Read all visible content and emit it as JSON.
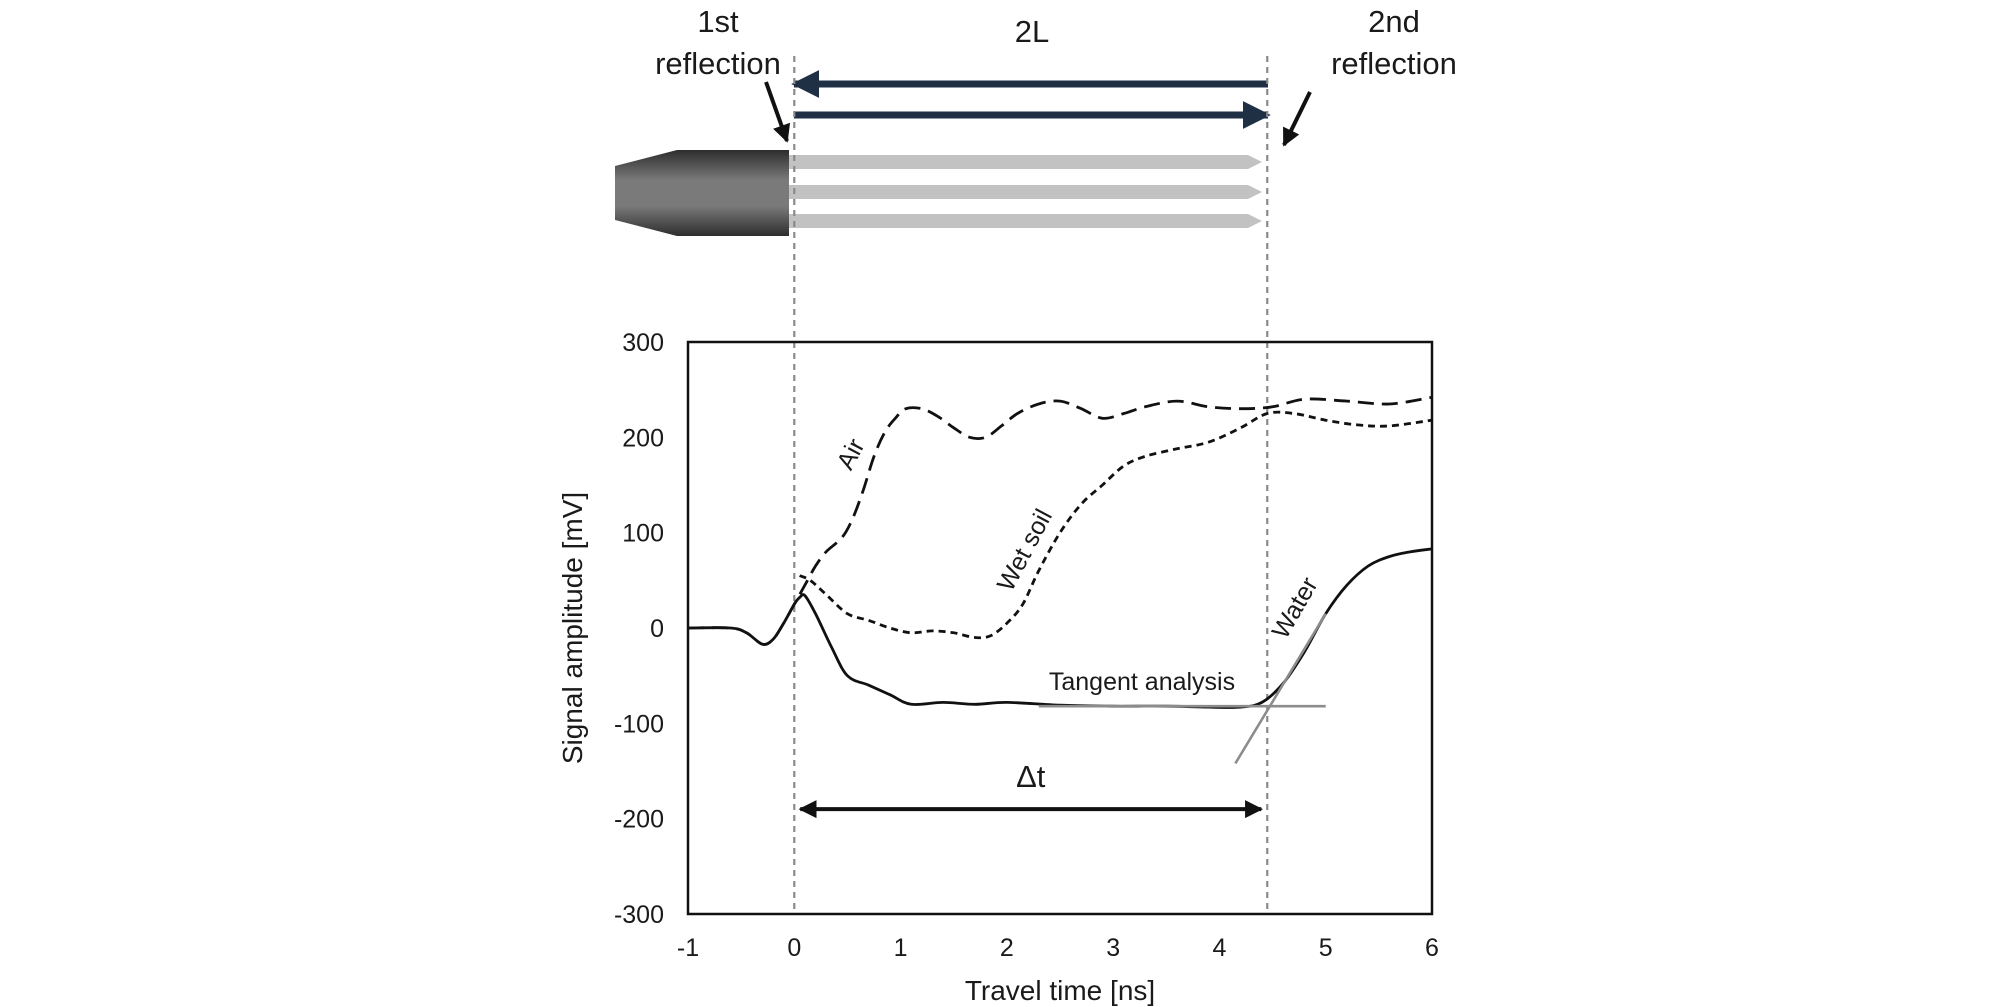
{
  "chart_data": {
    "type": "line",
    "title": "",
    "xlabel": "Travel time [ns]",
    "ylabel": "Signal amplitude [mV]",
    "xlim": [
      -1,
      6
    ],
    "ylim": [
      -300,
      300
    ],
    "x_ticks": [
      -1,
      0,
      1,
      2,
      3,
      4,
      5,
      6
    ],
    "y_ticks": [
      300,
      200,
      100,
      0,
      -100,
      -200,
      -300
    ],
    "grid": false,
    "legend": "none",
    "series": [
      {
        "name": "Air",
        "dash": "long",
        "x": [
          -1.0,
          -0.6,
          -0.45,
          -0.3,
          -0.2,
          -0.1,
          0.0,
          0.1,
          0.2,
          0.3,
          0.45,
          0.55,
          0.65,
          0.75,
          0.85,
          0.95,
          1.05,
          1.2,
          1.35,
          1.5,
          1.65,
          1.8,
          1.95,
          2.1,
          2.3,
          2.5,
          2.7,
          2.9,
          3.1,
          3.3,
          3.6,
          3.9,
          4.2,
          4.5,
          4.8,
          5.2,
          5.6,
          6.0
        ],
        "y": [
          0,
          0,
          -5,
          -17,
          -12,
          5,
          25,
          45,
          65,
          80,
          95,
          115,
          145,
          180,
          205,
          220,
          230,
          230,
          222,
          210,
          200,
          200,
          212,
          225,
          235,
          238,
          230,
          220,
          225,
          232,
          238,
          232,
          230,
          232,
          240,
          238,
          235,
          242
        ]
      },
      {
        "name": "Wet soil",
        "dash": "short",
        "x": [
          0.05,
          0.15,
          0.3,
          0.5,
          0.7,
          0.9,
          1.1,
          1.3,
          1.5,
          1.7,
          1.85,
          2.0,
          2.15,
          2.3,
          2.5,
          2.7,
          2.9,
          3.1,
          3.3,
          3.6,
          3.9,
          4.2,
          4.45,
          4.7,
          5.0,
          5.3,
          5.6,
          6.0
        ],
        "y": [
          55,
          50,
          35,
          15,
          8,
          0,
          -5,
          -3,
          -5,
          -10,
          -8,
          5,
          25,
          60,
          100,
          130,
          150,
          170,
          180,
          188,
          195,
          210,
          225,
          225,
          218,
          213,
          212,
          218
        ]
      },
      {
        "name": "Water",
        "dash": "solid",
        "x": [
          -1.0,
          -0.6,
          -0.45,
          -0.3,
          -0.2,
          -0.1,
          0.0,
          0.05,
          0.1,
          0.2,
          0.35,
          0.5,
          0.7,
          0.9,
          1.1,
          1.4,
          1.7,
          2.0,
          2.5,
          3.0,
          3.5,
          3.9,
          4.2,
          4.4,
          4.6,
          4.8,
          5.0,
          5.2,
          5.4,
          5.6,
          5.8,
          6.0
        ],
        "y": [
          0,
          0,
          -5,
          -17,
          -12,
          5,
          25,
          32,
          34,
          15,
          -20,
          -50,
          -60,
          -70,
          -80,
          -78,
          -80,
          -78,
          -81,
          -82,
          -82,
          -83,
          -83,
          -78,
          -58,
          -25,
          15,
          45,
          65,
          75,
          80,
          83
        ]
      }
    ],
    "tangent_lines": [
      {
        "name": "baseline tangent",
        "x": [
          2.3,
          5.0
        ],
        "y": [
          -82,
          -82
        ]
      },
      {
        "name": "rising-edge tangent",
        "x": [
          4.15,
          5.0
        ],
        "y": [
          -142,
          15
        ]
      }
    ],
    "markers": [
      {
        "x": 0.0,
        "label": "1st reflection"
      },
      {
        "x": 4.45,
        "label": "2nd reflection"
      }
    ],
    "delta_t": {
      "from": 0.0,
      "to": 4.45,
      "y": -190,
      "label": "Δt"
    },
    "curve_labels": {
      "air": "Air",
      "wet_soil": "Wet soil",
      "water": "Water",
      "tangent": "Tangent analysis"
    }
  },
  "diagram": {
    "first_reflection": [
      "1st",
      "reflection"
    ],
    "second_reflection": [
      "2nd",
      "reflection"
    ],
    "two_l": "2L"
  }
}
